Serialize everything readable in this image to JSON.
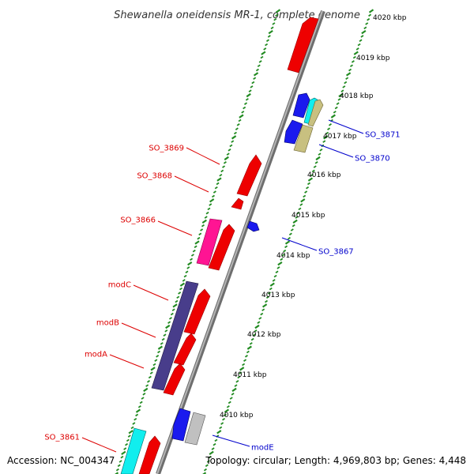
{
  "title": "Shewanella oneidensis MR-1, complete genome",
  "footer": {
    "accession": "Accession: NC_004347",
    "topology": "Topology: circular; Length: 4,969,803 bp; Genes: 4,448"
  },
  "ticks": [
    {
      "label": "4020 kbp",
      "kbp": 4020
    },
    {
      "label": "4019 kbp",
      "kbp": 4019
    },
    {
      "label": "4018 kbp",
      "kbp": 4018
    },
    {
      "label": "4017 kbp",
      "kbp": 4017
    },
    {
      "label": "4016 kbp",
      "kbp": 4016
    },
    {
      "label": "4015 kbp",
      "kbp": 4015
    },
    {
      "label": "4014 kbp",
      "kbp": 4014
    },
    {
      "label": "4013 kbp",
      "kbp": 4013
    },
    {
      "label": "4012 kbp",
      "kbp": 4012
    },
    {
      "label": "4011 kbp",
      "kbp": 4011
    },
    {
      "label": "4010 kbp",
      "kbp": 4010
    }
  ],
  "labels": [
    {
      "text": "SO_3869",
      "side": "left",
      "color": "#dd0000"
    },
    {
      "text": "SO_3868",
      "side": "left",
      "color": "#dd0000"
    },
    {
      "text": "SO_3866",
      "side": "left",
      "color": "#dd0000"
    },
    {
      "text": "modC",
      "side": "left",
      "color": "#dd0000"
    },
    {
      "text": "modB",
      "side": "left",
      "color": "#dd0000"
    },
    {
      "text": "modA",
      "side": "left",
      "color": "#dd0000"
    },
    {
      "text": "SO_3861",
      "side": "left",
      "color": "#dd0000"
    },
    {
      "text": "SO_3871",
      "side": "right",
      "color": "#0000cc"
    },
    {
      "text": "SO_3870",
      "side": "right",
      "color": "#0000cc"
    },
    {
      "text": "SO_3867",
      "side": "right",
      "color": "#0000cc"
    },
    {
      "text": "modE",
      "side": "right",
      "color": "#0000cc"
    }
  ],
  "colors": {
    "forward_gene": "#ee0000",
    "reverse_gene": "#1a1aee",
    "cyan_gene": "#11eeee",
    "magenta_gene": "#ff1493",
    "purple_gene": "#483d8b",
    "khaki_gene": "#c8c080",
    "grey_gene": "#c0c0c0",
    "backbone": "#8a8a8a",
    "ruler": "#228b22"
  }
}
